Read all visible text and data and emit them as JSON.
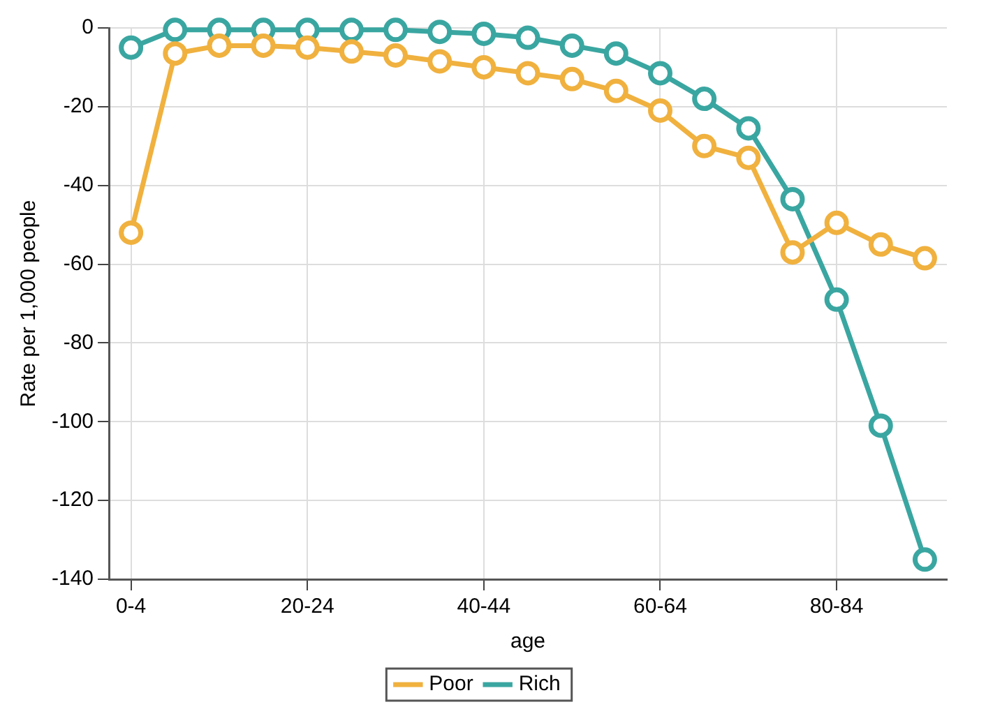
{
  "chart_data": {
    "type": "line",
    "xlabel": "age",
    "ylabel": "Rate per 1,000 people",
    "categories": [
      "0-4",
      null,
      null,
      null,
      "20-24",
      null,
      null,
      null,
      "40-44",
      null,
      null,
      null,
      "60-64",
      null,
      null,
      null,
      "80-84",
      null,
      null
    ],
    "series": [
      {
        "name": "Poor",
        "color": "#f0b13e",
        "values": [
          -52,
          -6.5,
          -4.5,
          -4.5,
          -5,
          -6,
          -7,
          -8.5,
          -10,
          -11.5,
          -13,
          -16,
          -21,
          -30,
          -33,
          -57,
          -49.5,
          -55,
          -58.5
        ]
      },
      {
        "name": "Rich",
        "color": "#3aa6a1",
        "values": [
          -5,
          -0.5,
          -0.5,
          -0.5,
          -0.5,
          -0.5,
          -0.5,
          -1,
          -1.5,
          -2.5,
          -4.5,
          -6.5,
          -11.5,
          -18,
          -25.5,
          -43.5,
          -69,
          -101,
          -135
        ]
      }
    ],
    "ylim": [
      -140,
      0
    ],
    "yticks": [
      -140,
      -120,
      -100,
      -80,
      -60,
      -40,
      -20,
      0
    ],
    "grid": true,
    "legend": "bottom",
    "marker": "circle",
    "line_style": "solid"
  }
}
